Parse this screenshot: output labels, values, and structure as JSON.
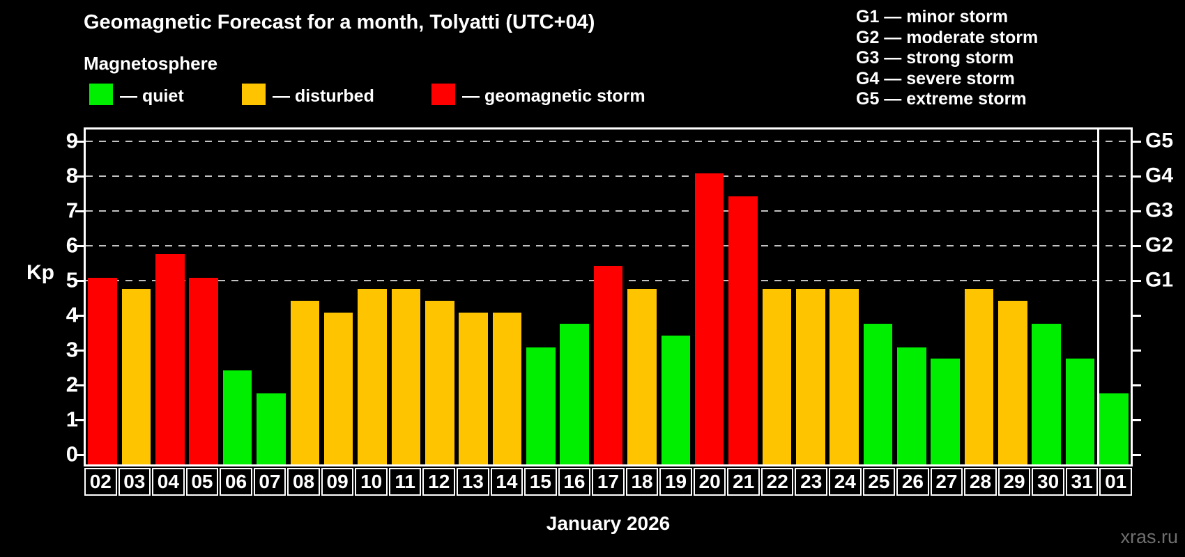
{
  "title": "Geomagnetic Forecast for a month, Tolyatti (UTC+04)",
  "subtitle": "Magnetosphere",
  "legend": {
    "quiet": "— quiet",
    "disturbed": "— disturbed",
    "storm": "— geomagnetic storm"
  },
  "g_legend": [
    "G1 — minor storm",
    "G2 — moderate storm",
    "G3 — strong storm",
    "G4 — severe storm",
    "G5 — extreme storm"
  ],
  "colors": {
    "quiet": "#00ee00",
    "disturbed": "#ffc400",
    "storm": "#ff0000",
    "grid": "#c2c2c2",
    "frame": "#ffffff",
    "watermark": "#6f6f6f"
  },
  "kp_axis_title": "Kp",
  "month_label": "January 2026",
  "watermark": "xras.ru",
  "chart_data": {
    "type": "bar",
    "title": "Geomagnetic Forecast for a month, Tolyatti (UTC+04)",
    "xlabel": "January 2026",
    "ylabel": "Kp",
    "ylim": [
      0,
      9
    ],
    "yticks": [
      0,
      1,
      2,
      3,
      4,
      5,
      6,
      7,
      8,
      9
    ],
    "gridlines_at": [
      5,
      6,
      7,
      8,
      9
    ],
    "grid": "dashed, horizontal, only at Kp 5-9",
    "legend_position": "top-left",
    "right_axis_labels": [
      {
        "kp": 5,
        "label": "G1"
      },
      {
        "kp": 6,
        "label": "G2"
      },
      {
        "kp": 7,
        "label": "G3"
      },
      {
        "kp": 8,
        "label": "G4"
      },
      {
        "kp": 9,
        "label": "G5"
      }
    ],
    "categories": [
      "02",
      "03",
      "04",
      "05",
      "06",
      "07",
      "08",
      "09",
      "10",
      "11",
      "12",
      "13",
      "14",
      "15",
      "16",
      "17",
      "18",
      "19",
      "20",
      "21",
      "22",
      "23",
      "24",
      "25",
      "26",
      "27",
      "28",
      "29",
      "30",
      "31",
      "01"
    ],
    "values": [
      5.0,
      4.67,
      5.67,
      5.0,
      2.33,
      1.67,
      4.33,
      4.0,
      4.67,
      4.67,
      4.33,
      4.0,
      4.0,
      3.0,
      3.67,
      5.33,
      4.67,
      3.33,
      8.0,
      7.33,
      4.67,
      4.67,
      4.67,
      3.67,
      3.0,
      2.67,
      4.67,
      4.33,
      3.67,
      2.67,
      1.67
    ],
    "statuses": [
      "storm",
      "disturbed",
      "storm",
      "storm",
      "quiet",
      "quiet",
      "disturbed",
      "disturbed",
      "disturbed",
      "disturbed",
      "disturbed",
      "disturbed",
      "disturbed",
      "quiet",
      "quiet",
      "storm",
      "disturbed",
      "quiet",
      "storm",
      "storm",
      "disturbed",
      "disturbed",
      "disturbed",
      "quiet",
      "quiet",
      "quiet",
      "disturbed",
      "disturbed",
      "quiet",
      "quiet",
      "quiet"
    ],
    "month_separator_before_index": 30
  }
}
